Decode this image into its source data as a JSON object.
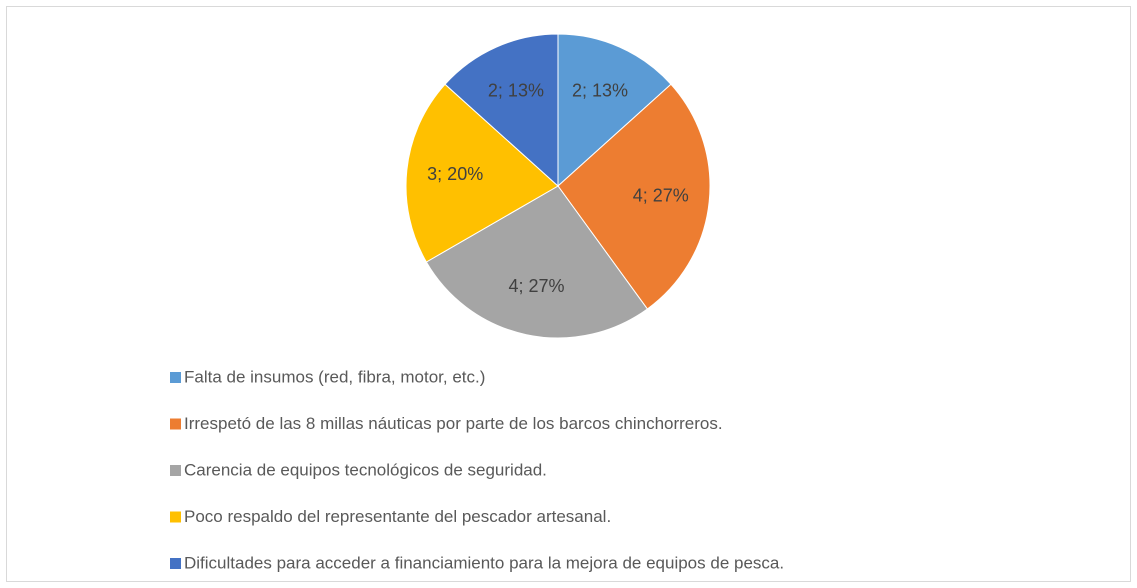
{
  "chart_data": {
    "type": "pie",
    "categories": [
      "Falta de insumos (red, fibra, motor, etc.)",
      "Irrespetó de las 8 millas náuticas por parte de los barcos chinchorreros.",
      "Carencia de equipos tecnológicos de seguridad.",
      "Poco respaldo del representante del pescador artesanal.",
      "Dificultades para acceder a financiamiento para la mejora de equipos de pesca."
    ],
    "values": [
      2,
      4,
      4,
      3,
      2
    ],
    "value_labels": [
      "2; 13%",
      "4; 27%",
      "4; 27%",
      "3; 20%",
      "2; 13%"
    ],
    "colors": [
      "#5b9bd5",
      "#ed7d31",
      "#a5a5a5",
      "#ffc000",
      "#4472c4"
    ],
    "legend": "bottom"
  }
}
